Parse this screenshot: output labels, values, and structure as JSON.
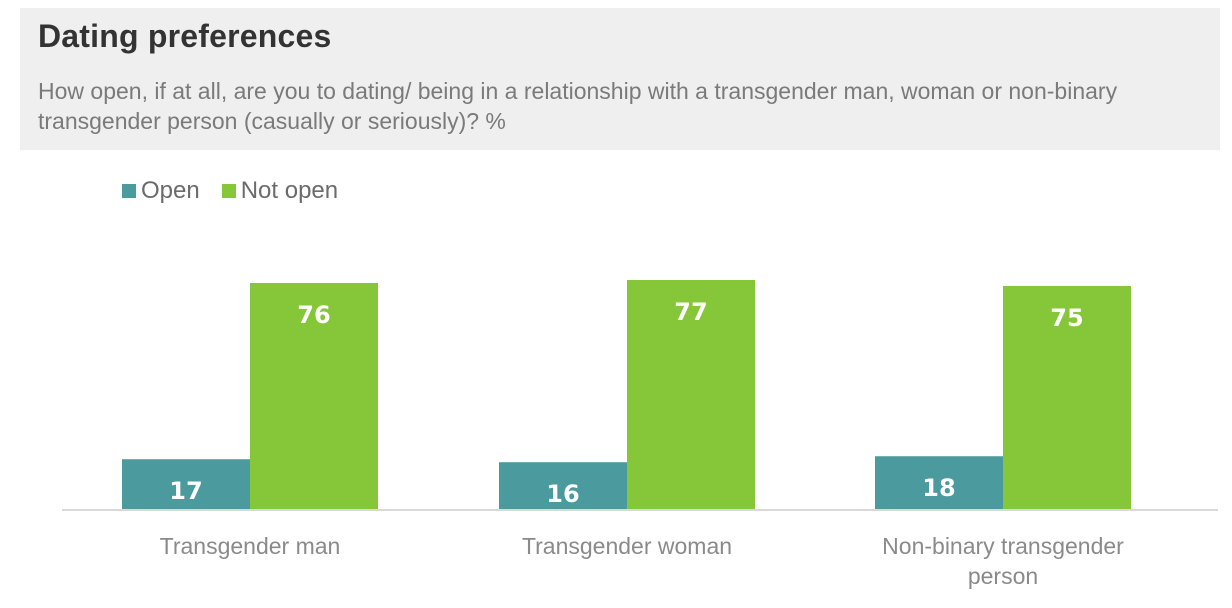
{
  "chart_data": {
    "type": "bar",
    "title": "Dating preferences",
    "subtitle": "How open, if at all, are you to dating/ being in a relationship with a transgender  man, woman or non-binary transgender person (casually or seriously)? %",
    "categories": [
      "Transgender man",
      "Transgender woman",
      "Non-binary transgender person"
    ],
    "series": [
      {
        "name": "Open",
        "values": [
          17,
          16,
          18
        ],
        "color": "#4a9a9e"
      },
      {
        "name": "Not open",
        "values": [
          76,
          77,
          75
        ],
        "color": "#86c73a"
      }
    ],
    "xlabel": "",
    "ylabel": "",
    "ylim": [
      0,
      77
    ],
    "grid": false,
    "legend": "top-left",
    "data_labels": true
  },
  "colors": {
    "axis": "#d9d9d9",
    "header_background": "#efefef"
  }
}
